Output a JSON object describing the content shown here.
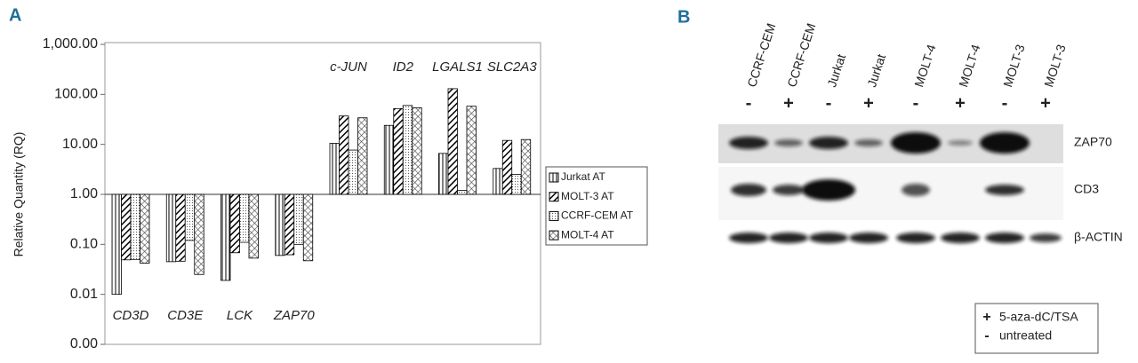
{
  "panel_labels": [
    "A",
    "B"
  ],
  "chart_data": {
    "type": "bar",
    "ylabel": "Relative Quantity (RQ)",
    "log_scale": true,
    "categories": [
      "CD3D",
      "CD3E",
      "LCK",
      "ZAP70",
      "c-JUN",
      "ID2",
      "LGALS1",
      "SLC2A3"
    ],
    "series": [
      {
        "name": "Jurkat AT",
        "color": "#000000",
        "pattern": "vertical",
        "values": [
          0.01,
          0.045,
          0.019,
          0.06,
          10.5,
          24,
          6.6,
          3.3
        ]
      },
      {
        "name": "MOLT-3 AT",
        "color": "#000000",
        "pattern": "diagonal",
        "values": [
          0.049,
          0.046,
          0.068,
          0.062,
          37,
          52,
          130,
          12
        ]
      },
      {
        "name": "CCRF-CEM AT",
        "color": "#000000",
        "pattern": "dotted",
        "values": [
          0.05,
          0.12,
          0.11,
          0.1,
          7.7,
          60,
          1.2,
          2.5
        ]
      },
      {
        "name": "MOLT-4 AT",
        "color": "#000000",
        "pattern": "cross",
        "values": [
          0.042,
          0.025,
          0.053,
          0.047,
          34,
          54,
          58,
          12.5
        ]
      }
    ],
    "ylim": [
      0.001,
      1000
    ],
    "yticks": [
      {
        "value": 1000,
        "label": "1,000.00"
      },
      {
        "value": 100,
        "label": "100.00"
      },
      {
        "value": 10,
        "label": "10.00"
      },
      {
        "value": 1,
        "label": "1.00"
      },
      {
        "value": 0.1,
        "label": "0.10"
      },
      {
        "value": 0.01,
        "label": "0.01"
      },
      {
        "value": 0.001,
        "label": "0.00"
      }
    ],
    "legend": "right"
  },
  "blot": {
    "lanes": [
      {
        "cell": "CCRF-CEM",
        "treatment": "-"
      },
      {
        "cell": "CCRF-CEM",
        "treatment": "+"
      },
      {
        "cell": "Jurkat",
        "treatment": "-"
      },
      {
        "cell": "Jurkat",
        "treatment": "+"
      },
      {
        "cell": "MOLT-4",
        "treatment": "-"
      },
      {
        "cell": "MOLT-4",
        "treatment": "+"
      },
      {
        "cell": "MOLT-3",
        "treatment": "-"
      },
      {
        "cell": "MOLT-3",
        "treatment": "+"
      }
    ],
    "rows": [
      "ZAP70",
      "CD3",
      "β-ACTIN"
    ],
    "legend": [
      {
        "symbol": "+",
        "text": "5-aza-dC/TSA"
      },
      {
        "symbol": "-",
        "text": "untreated"
      }
    ]
  }
}
